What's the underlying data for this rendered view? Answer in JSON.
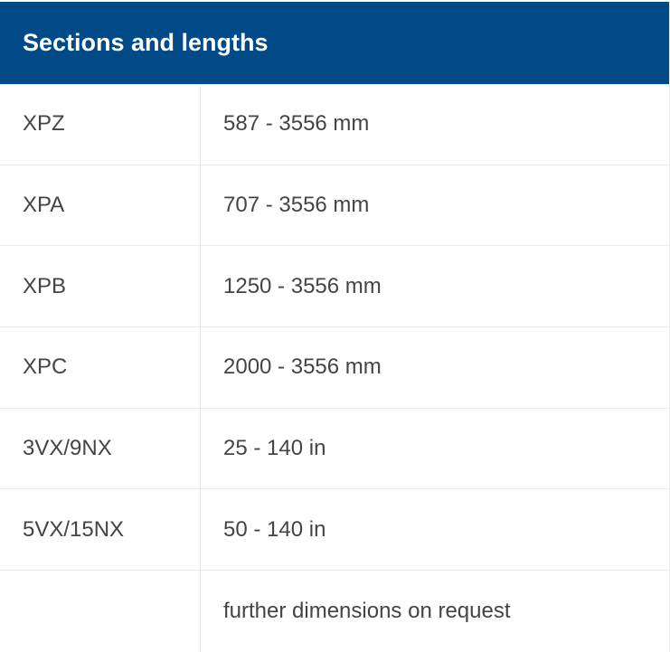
{
  "table": {
    "title": "Sections and lengths",
    "rows": [
      {
        "section": "XPZ",
        "length": "587 - 3556 mm"
      },
      {
        "section": "XPA",
        "length": "707 - 3556 mm"
      },
      {
        "section": "XPB",
        "length": "1250 - 3556 mm"
      },
      {
        "section": "XPC",
        "length": "2000 - 3556 mm"
      },
      {
        "section": "3VX/9NX",
        "length": "25 - 140 in"
      },
      {
        "section": "5VX/15NX",
        "length": "50 - 140 in"
      },
      {
        "section": "",
        "length": "further dimensions on request"
      }
    ]
  },
  "colors": {
    "header_bg": "#004a88",
    "header_text": "#ffffff",
    "body_text": "#444444",
    "border": "#ebebeb"
  }
}
